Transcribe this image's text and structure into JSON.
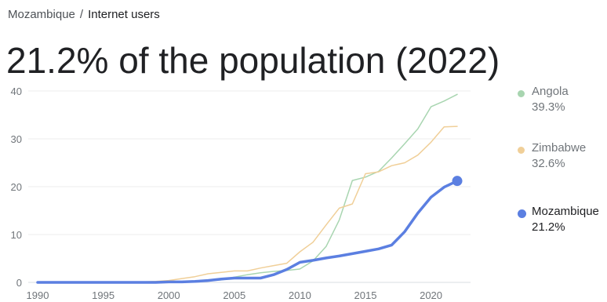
{
  "breadcrumb": {
    "country": "Mozambique",
    "separator": "/",
    "topic": "Internet users"
  },
  "title": "21.2% of the population (2022)",
  "legend": [
    {
      "name": "Angola",
      "value": "39.3%",
      "color": "#a8d5b0"
    },
    {
      "name": "Zimbabwe",
      "value": "32.6%",
      "color": "#f0cf98"
    },
    {
      "name": "Mozambique",
      "value": "21.2%",
      "color": "#5b7fe1"
    }
  ],
  "chart_data": {
    "type": "line",
    "xlabel": "",
    "ylabel": "",
    "xlim": [
      1990,
      2022
    ],
    "ylim": [
      0,
      40
    ],
    "x_ticks": [
      "1990",
      "1995",
      "2000",
      "2005",
      "2010",
      "2015",
      "2020"
    ],
    "y_ticks": [
      "0",
      "10",
      "20",
      "30",
      "40"
    ],
    "grid": true,
    "legend_position": "right",
    "series": [
      {
        "name": "Angola",
        "color": "#a8d5b0",
        "width": 1.5,
        "x": [
          1990,
          1991,
          1992,
          1993,
          1994,
          1995,
          1996,
          1997,
          1998,
          1999,
          2000,
          2001,
          2002,
          2003,
          2004,
          2005,
          2006,
          2007,
          2008,
          2009,
          2010,
          2011,
          2012,
          2013,
          2014,
          2015,
          2016,
          2017,
          2018,
          2019,
          2020,
          2021,
          2022
        ],
        "y": [
          0,
          0,
          0,
          0,
          0,
          0,
          0,
          0,
          0,
          0.1,
          0.1,
          0.1,
          0.3,
          0.4,
          0.5,
          1.1,
          1.6,
          2.0,
          2.3,
          2.5,
          2.8,
          4.5,
          7.5,
          13.0,
          21.3,
          22.0,
          23.2,
          26.0,
          29.0,
          32.1,
          36.7,
          37.9,
          39.3
        ]
      },
      {
        "name": "Zimbabwe",
        "color": "#f0cf98",
        "width": 1.5,
        "x": [
          1990,
          1991,
          1992,
          1993,
          1994,
          1995,
          1996,
          1997,
          1998,
          1999,
          2000,
          2001,
          2002,
          2003,
          2004,
          2005,
          2006,
          2007,
          2008,
          2009,
          2010,
          2011,
          2012,
          2013,
          2014,
          2015,
          2016,
          2017,
          2018,
          2019,
          2020,
          2021,
          2022
        ],
        "y": [
          0,
          0,
          0,
          0,
          0,
          0,
          0,
          0,
          0.1,
          0.2,
          0.4,
          0.8,
          1.2,
          1.8,
          2.1,
          2.4,
          2.4,
          3.0,
          3.5,
          4.0,
          6.4,
          8.4,
          12.0,
          15.5,
          16.4,
          22.7,
          23.1,
          24.4,
          25.0,
          26.6,
          29.3,
          32.5,
          32.6
        ]
      },
      {
        "name": "Mozambique",
        "color": "#5b7fe1",
        "width": 3.5,
        "x": [
          1990,
          1991,
          1992,
          1993,
          1994,
          1995,
          1996,
          1997,
          1998,
          1999,
          2000,
          2001,
          2002,
          2003,
          2004,
          2005,
          2006,
          2007,
          2008,
          2009,
          2010,
          2011,
          2012,
          2013,
          2014,
          2015,
          2016,
          2017,
          2018,
          2019,
          2020,
          2021,
          2022
        ],
        "y": [
          0,
          0,
          0,
          0,
          0,
          0,
          0,
          0,
          0,
          0,
          0.1,
          0.1,
          0.2,
          0.4,
          0.7,
          0.9,
          0.9,
          0.9,
          1.6,
          2.7,
          4.2,
          4.6,
          5.1,
          5.5,
          6.0,
          6.5,
          7.0,
          7.8,
          10.6,
          14.5,
          17.8,
          19.9,
          21.2
        ]
      }
    ]
  }
}
